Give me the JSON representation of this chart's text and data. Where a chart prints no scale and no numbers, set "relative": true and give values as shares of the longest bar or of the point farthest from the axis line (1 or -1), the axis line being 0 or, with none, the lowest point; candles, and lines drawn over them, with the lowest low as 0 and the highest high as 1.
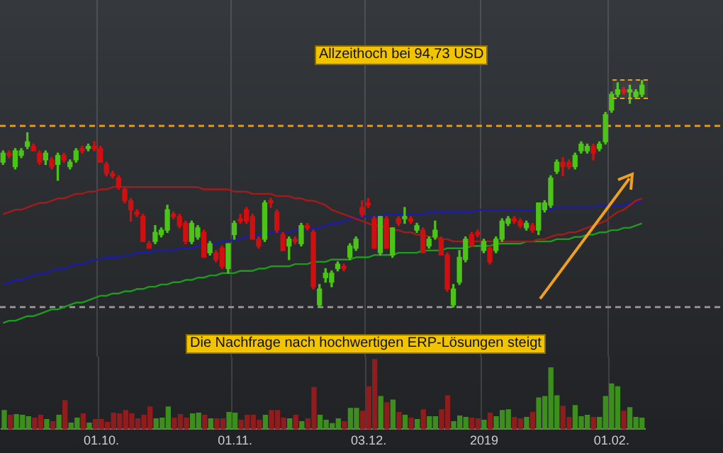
{
  "chart_data": [
    {
      "type": "candlestick",
      "relative": true,
      "grid": "x",
      "marker": "none",
      "tick_labels": false,
      "annotations": [
        "Allzeithoch bei 94,73 USD",
        "Die Nachfrage nach hochwertigen ERP-Lösungen steigt"
      ],
      "categories": [
        null,
        null,
        null,
        null,
        null,
        null,
        null,
        null,
        null,
        null,
        null,
        null,
        null,
        null,
        null,
        null,
        "01.10.",
        null,
        null,
        null,
        null,
        null,
        null,
        null,
        null,
        null,
        null,
        null,
        null,
        null,
        null,
        null,
        null,
        null,
        null,
        null,
        null,
        null,
        "01.11.",
        null,
        null,
        null,
        null,
        null,
        null,
        null,
        null,
        null,
        null,
        null,
        null,
        null,
        null,
        null,
        null,
        null,
        null,
        null,
        null,
        null,
        "03.12.",
        null,
        null,
        null,
        null,
        null,
        null,
        null,
        null,
        null,
        null,
        null,
        null,
        null,
        null,
        null,
        null,
        null,
        null,
        "2019",
        null,
        null,
        null,
        null,
        null,
        null,
        null,
        null,
        null,
        null,
        null,
        null,
        null,
        null,
        null,
        null,
        null,
        null,
        null,
        null,
        "01.02.",
        null,
        null,
        null,
        null,
        null
      ],
      "ohlc": [
        [
          0.64,
          0.69,
          0.63,
          0.68
        ],
        [
          0.68,
          0.69,
          0.66,
          0.67
        ],
        [
          0.62,
          0.7,
          0.61,
          0.69
        ],
        [
          0.67,
          0.7,
          0.66,
          0.69
        ],
        [
          0.71,
          0.77,
          0.7,
          0.73
        ],
        [
          0.71,
          0.72,
          0.69,
          0.69
        ],
        [
          0.68,
          0.69,
          0.63,
          0.64
        ],
        [
          0.65,
          0.69,
          0.63,
          0.68
        ],
        [
          0.65,
          0.66,
          0.61,
          0.62
        ],
        [
          0.63,
          0.68,
          0.56,
          0.67
        ],
        [
          0.67,
          0.68,
          0.64,
          0.65
        ],
        [
          0.62,
          0.65,
          0.61,
          0.64
        ],
        [
          0.65,
          0.7,
          0.64,
          0.69
        ],
        [
          0.7,
          0.71,
          0.68,
          0.69
        ],
        [
          0.7,
          0.72,
          0.69,
          0.71
        ],
        [
          0.71,
          0.73,
          0.69,
          0.7
        ],
        [
          0.7,
          0.71,
          0.64,
          0.64
        ],
        [
          0.63,
          0.64,
          0.58,
          0.59
        ],
        [
          0.59,
          0.6,
          0.57,
          0.58
        ],
        [
          0.57,
          0.58,
          0.52,
          0.53
        ],
        [
          0.52,
          0.53,
          0.46,
          0.47
        ],
        [
          0.47,
          0.48,
          0.38,
          0.43
        ],
        [
          0.42,
          0.43,
          0.4,
          0.41
        ],
        [
          0.4,
          0.41,
          0.29,
          0.29
        ],
        [
          0.28,
          0.29,
          0.26,
          0.26
        ],
        [
          0.29,
          0.36,
          0.28,
          0.33
        ],
        [
          0.32,
          0.35,
          0.31,
          0.34
        ],
        [
          0.34,
          0.45,
          0.33,
          0.43
        ],
        [
          0.41,
          0.42,
          0.39,
          0.4
        ],
        [
          0.4,
          0.41,
          0.35,
          0.36
        ],
        [
          0.37,
          0.38,
          0.28,
          0.29
        ],
        [
          0.29,
          0.38,
          0.28,
          0.37
        ],
        [
          0.31,
          0.36,
          0.3,
          0.35
        ],
        [
          0.33,
          0.34,
          0.22,
          0.22
        ],
        [
          0.24,
          0.29,
          0.23,
          0.28
        ],
        [
          0.24,
          0.25,
          0.2,
          0.21
        ],
        [
          0.26,
          0.27,
          0.17,
          0.18
        ],
        [
          0.17,
          0.28,
          0.15,
          0.28
        ],
        [
          0.32,
          0.38,
          0.3,
          0.37
        ],
        [
          0.39,
          0.41,
          0.37,
          0.38
        ],
        [
          0.43,
          0.44,
          0.37,
          0.38
        ],
        [
          0.4,
          0.41,
          0.3,
          0.3
        ],
        [
          0.3,
          0.31,
          0.26,
          0.27
        ],
        [
          0.3,
          0.47,
          0.29,
          0.46
        ],
        [
          0.47,
          0.48,
          0.44,
          0.46
        ],
        [
          0.42,
          0.43,
          0.33,
          0.34
        ],
        [
          0.32,
          0.33,
          0.25,
          0.25
        ],
        [
          0.27,
          0.31,
          0.21,
          0.3
        ],
        [
          0.3,
          0.31,
          0.28,
          0.29
        ],
        [
          0.28,
          0.37,
          0.27,
          0.36
        ],
        [
          0.36,
          0.37,
          0.34,
          0.35
        ],
        [
          0.33,
          0.34,
          0.08,
          0.09
        ],
        [
          0.01,
          0.1,
          0,
          0.08
        ],
        [
          0.13,
          0.17,
          0.11,
          0.15
        ],
        [
          0.11,
          0.16,
          0.09,
          0.15
        ],
        [
          0.17,
          0.2,
          0.16,
          0.19
        ],
        [
          0.18,
          0.19,
          0.16,
          0.17
        ],
        [
          0.22,
          0.28,
          0.21,
          0.27
        ],
        [
          0.26,
          0.31,
          0.25,
          0.3
        ],
        [
          0.44,
          0.47,
          0.4,
          0.41
        ],
        [
          0.46,
          0.48,
          0.44,
          0.45
        ],
        [
          0.39,
          0.4,
          0.26,
          0.26
        ],
        [
          0.24,
          0.4,
          0.23,
          0.4
        ],
        [
          0.39,
          0.4,
          0.26,
          0.26
        ],
        [
          0.23,
          0.35,
          0.22,
          0.35
        ],
        [
          0.39,
          0.4,
          0.36,
          0.37
        ],
        [
          0.39,
          0.44,
          0.37,
          0.4
        ],
        [
          0.39,
          0.4,
          0.37,
          0.38
        ],
        [
          0.34,
          0.37,
          0.33,
          0.36
        ],
        [
          0.34,
          0.35,
          0.24,
          0.24
        ],
        [
          0.27,
          0.31,
          0.26,
          0.3
        ],
        [
          0.31,
          0.38,
          0.3,
          0.34
        ],
        [
          0.3,
          0.31,
          0.23,
          0.23
        ],
        [
          0.23,
          0.24,
          0.07,
          0.08
        ],
        [
          0.01,
          0.1,
          0,
          0.08
        ],
        [
          0.11,
          0.25,
          0.1,
          0.22
        ],
        [
          0.21,
          0.31,
          0.2,
          0.3
        ],
        [
          0.32,
          0.33,
          0.27,
          0.27
        ],
        [
          0.33,
          0.34,
          0.31,
          0.32
        ],
        [
          0.25,
          0.3,
          0.24,
          0.29
        ],
        [
          0.26,
          0.27,
          0.19,
          0.2
        ],
        [
          0.25,
          0.31,
          0.24,
          0.3
        ],
        [
          0.3,
          0.39,
          0.29,
          0.38
        ],
        [
          0.37,
          0.4,
          0.36,
          0.39
        ],
        [
          0.39,
          0.4,
          0.37,
          0.38
        ],
        [
          0.38,
          0.39,
          0.35,
          0.36
        ],
        [
          0.35,
          0.38,
          0.34,
          0.37
        ],
        [
          0.36,
          0.37,
          0.33,
          0.34
        ],
        [
          0.34,
          0.46,
          0.32,
          0.46
        ],
        [
          0.43,
          0.47,
          0.42,
          0.46
        ],
        [
          0.45,
          0.58,
          0.44,
          0.57
        ],
        [
          0.6,
          0.65,
          0.59,
          0.64
        ],
        [
          0.64,
          0.66,
          0.58,
          0.62
        ],
        [
          0.64,
          0.65,
          0.61,
          0.62
        ],
        [
          0.62,
          0.68,
          0.61,
          0.67
        ],
        [
          0.69,
          0.73,
          0.68,
          0.72
        ],
        [
          0.69,
          0.72,
          0.68,
          0.71
        ],
        [
          0.71,
          0.72,
          0.65,
          0.68
        ],
        [
          0.7,
          0.73,
          0.69,
          0.72
        ],
        [
          0.73,
          0.86,
          0.72,
          0.85
        ],
        [
          0.87,
          0.95,
          0.86,
          0.94
        ],
        [
          0.94,
          0.99,
          0.93,
          0.96
        ],
        [
          0.96,
          0.97,
          0.94,
          0.95
        ],
        [
          0.95,
          0.98,
          0.9,
          0.96
        ],
        [
          0.93,
          0.96,
          0.92,
          0.95
        ],
        [
          0.94,
          1,
          0.93,
          0.98
        ]
      ],
      "colors": [
        "#4cc417",
        "#d01010",
        "#4cc417",
        "#4cc417",
        "#4cc417",
        "#d01010",
        "#d01010",
        "#4cc417",
        "#d01010",
        "#4cc417",
        "#d01010",
        "#4cc417",
        "#4cc417",
        "#d01010",
        "#4cc417",
        "#d01010",
        "#d01010",
        "#d01010",
        "#d01010",
        "#d01010",
        "#d01010",
        "#d01010",
        "#d01010",
        "#d01010",
        "#d01010",
        "#4cc417",
        "#4cc417",
        "#4cc417",
        "#d01010",
        "#d01010",
        "#d01010",
        "#4cc417",
        "#4cc417",
        "#d01010",
        "#4cc417",
        "#d01010",
        "#d01010",
        "#4cc417",
        "#4cc417",
        "#d01010",
        "#d01010",
        "#d01010",
        "#d01010",
        "#4cc417",
        "#d01010",
        "#d01010",
        "#d01010",
        "#4cc417",
        "#d01010",
        "#4cc417",
        "#d01010",
        "#d01010",
        "#4cc417",
        "#4cc417",
        "#4cc417",
        "#4cc417",
        "#d01010",
        "#4cc417",
        "#4cc417",
        "#d01010",
        "#d01010",
        "#d01010",
        "#4cc417",
        "#d01010",
        "#4cc417",
        "#d01010",
        "#4cc417",
        "#d01010",
        "#4cc417",
        "#d01010",
        "#4cc417",
        "#4cc417",
        "#d01010",
        "#d01010",
        "#4cc417",
        "#4cc417",
        "#4cc417",
        "#d01010",
        "#d01010",
        "#4cc417",
        "#d01010",
        "#4cc417",
        "#4cc417",
        "#4cc417",
        "#d01010",
        "#d01010",
        "#4cc417",
        "#d01010",
        "#4cc417",
        "#4cc417",
        "#4cc417",
        "#4cc417",
        "#d01010",
        "#d01010",
        "#4cc417",
        "#4cc417",
        "#4cc417",
        "#d01010",
        "#4cc417",
        "#4cc417",
        "#4cc417",
        "#4cc417",
        "#d01010",
        "#4cc417",
        "#4cc417",
        "#4cc417"
      ],
      "series": [
        {
          "type": "line",
          "color": "#a31c1c",
          "values": [
            0.41,
            0.42,
            0.43,
            0.43,
            0.44,
            0.45,
            0.46,
            0.46,
            0.47,
            0.48,
            0.48,
            0.49,
            0.5,
            0.5,
            0.51,
            0.51,
            0.52,
            0.52,
            0.53,
            0.53,
            0.53,
            0.53,
            0.53,
            0.53,
            0.53,
            0.53,
            0.53,
            0.53,
            0.53,
            0.53,
            0.53,
            0.53,
            0.53,
            0.52,
            0.52,
            0.52,
            0.52,
            0.52,
            0.51,
            0.51,
            0.51,
            0.5,
            0.5,
            0.5,
            0.5,
            0.49,
            0.49,
            0.49,
            0.48,
            0.48,
            0.47,
            0.47,
            0.46,
            0.45,
            0.43,
            0.42,
            0.41,
            0.4,
            0.39,
            0.38,
            0.37,
            0.36,
            0.36,
            0.35,
            0.34,
            0.34,
            0.33,
            0.33,
            0.32,
            0.32,
            0.31,
            0.31,
            0.3,
            0.3,
            0.29,
            0.29,
            0.29,
            0.29,
            0.29,
            0.29,
            0.29,
            0.29,
            0.29,
            0.29,
            0.29,
            0.29,
            0.29,
            0.29,
            0.3,
            0.3,
            0.31,
            0.32,
            0.32,
            0.33,
            0.33,
            0.34,
            0.35,
            0.36,
            0.37,
            0.38,
            0.4,
            0.42,
            0.43,
            0.45,
            0.47,
            0.48
          ]
        },
        {
          "type": "line",
          "color": "#1c1ca8",
          "values": [
            0.1,
            0.11,
            0.12,
            0.12,
            0.13,
            0.14,
            0.15,
            0.15,
            0.16,
            0.17,
            0.17,
            0.18,
            0.19,
            0.19,
            0.2,
            0.21,
            0.21,
            0.22,
            0.22,
            0.22,
            0.23,
            0.23,
            0.24,
            0.24,
            0.24,
            0.25,
            0.25,
            0.25,
            0.25,
            0.26,
            0.26,
            0.26,
            0.27,
            0.27,
            0.28,
            0.28,
            0.29,
            0.29,
            0.3,
            0.3,
            0.31,
            0.31,
            0.32,
            0.32,
            0.33,
            0.33,
            0.33,
            0.33,
            0.34,
            0.34,
            0.34,
            0.35,
            0.35,
            0.36,
            0.37,
            0.37,
            0.38,
            0.39,
            0.39,
            0.4,
            0.4,
            0.4,
            0.4,
            0.41,
            0.41,
            0.41,
            0.41,
            0.41,
            0.41,
            0.41,
            0.42,
            0.42,
            0.42,
            0.42,
            0.42,
            0.42,
            0.42,
            0.42,
            0.43,
            0.43,
            0.43,
            0.43,
            0.43,
            0.43,
            0.43,
            0.43,
            0.43,
            0.43,
            0.43,
            0.43,
            0.43,
            0.44,
            0.44,
            0.44,
            0.44,
            0.44,
            0.44,
            0.44,
            0.45,
            0.45,
            0.45,
            0.45,
            0.45,
            0.46,
            0.46,
            0.46
          ]
        },
        {
          "type": "line",
          "color": "#1f9a1f",
          "values": [
            -0.07,
            -0.06,
            -0.06,
            -0.05,
            -0.04,
            -0.04,
            -0.03,
            -0.02,
            -0.01,
            -0.01,
            0.0,
            0.01,
            0.02,
            0.02,
            0.03,
            0.04,
            0.05,
            0.05,
            0.06,
            0.06,
            0.07,
            0.07,
            0.08,
            0.08,
            0.09,
            0.09,
            0.1,
            0.1,
            0.11,
            0.11,
            0.12,
            0.12,
            0.13,
            0.13,
            0.14,
            0.14,
            0.15,
            0.15,
            0.15,
            0.16,
            0.16,
            0.16,
            0.17,
            0.17,
            0.18,
            0.18,
            0.18,
            0.18,
            0.19,
            0.19,
            0.19,
            0.2,
            0.2,
            0.2,
            0.21,
            0.21,
            0.21,
            0.21,
            0.22,
            0.22,
            0.22,
            0.23,
            0.23,
            0.23,
            0.23,
            0.24,
            0.24,
            0.24,
            0.24,
            0.25,
            0.25,
            0.25,
            0.25,
            0.26,
            0.26,
            0.26,
            0.26,
            0.27,
            0.27,
            0.27,
            0.27,
            0.28,
            0.28,
            0.28,
            0.28,
            0.28,
            0.29,
            0.29,
            0.29,
            0.29,
            0.29,
            0.3,
            0.3,
            0.3,
            0.31,
            0.31,
            0.32,
            0.32,
            0.33,
            0.33,
            0.34,
            0.34,
            0.35,
            0.35,
            0.36,
            0.37
          ]
        }
      ],
      "ref_lines": [
        {
          "axis": "y",
          "value": 0.8,
          "color": "#e8a020",
          "line_style": "dashed"
        },
        {
          "axis": "y",
          "value": 0,
          "color": "#9a9a9a",
          "line_style": "dashed"
        }
      ]
    },
    {
      "type": "bar",
      "relative": true,
      "grid": "x",
      "tick_labels": "x",
      "categories": [
        null,
        null,
        null,
        null,
        null,
        null,
        null,
        null,
        null,
        null,
        null,
        null,
        null,
        null,
        null,
        null,
        "01.10.",
        null,
        null,
        null,
        null,
        null,
        null,
        null,
        null,
        null,
        null,
        null,
        null,
        null,
        null,
        null,
        null,
        null,
        null,
        null,
        null,
        null,
        "01.11.",
        null,
        null,
        null,
        null,
        null,
        null,
        null,
        null,
        null,
        null,
        null,
        null,
        null,
        null,
        null,
        null,
        null,
        null,
        null,
        null,
        null,
        "03.12.",
        null,
        null,
        null,
        null,
        null,
        null,
        null,
        null,
        null,
        null,
        null,
        null,
        null,
        null,
        null,
        null,
        null,
        null,
        "2019",
        null,
        null,
        null,
        null,
        null,
        null,
        null,
        null,
        null,
        null,
        null,
        null,
        null,
        null,
        null,
        null,
        null,
        null,
        null,
        null,
        "01.02.",
        null,
        null,
        null,
        null,
        null
      ],
      "values": [
        0.27,
        0.2,
        0.21,
        0.2,
        0.18,
        0.16,
        0.2,
        0.14,
        0.11,
        0.2,
        0.41,
        0.09,
        0.16,
        0.22,
        0.09,
        0.14,
        0.14,
        0.1,
        0.23,
        0.22,
        0.27,
        0.22,
        0.15,
        0.2,
        0.32,
        0.15,
        0.16,
        0.32,
        0.16,
        0.21,
        0.16,
        0.22,
        0.23,
        0.2,
        0.15,
        0.15,
        0.15,
        0.24,
        0.23,
        0.13,
        0.2,
        0.2,
        0.13,
        0.2,
        0.27,
        0.27,
        0.16,
        0.15,
        0.2,
        0.11,
        0.15,
        0.6,
        0.2,
        0.13,
        0.08,
        0.15,
        0.11,
        0.3,
        0.3,
        0.26,
        0.61,
        1,
        0.47,
        0.38,
        0.42,
        0.24,
        0.2,
        0.16,
        0.14,
        0.28,
        0.18,
        0.18,
        0.28,
        0.48,
        0.11,
        0.19,
        0.17,
        0.16,
        0.15,
        0.13,
        0.23,
        0.18,
        0.27,
        0.28,
        0.17,
        0.15,
        0.17,
        0.24,
        0.45,
        0.47,
        0.88,
        0.48,
        0.33,
        0.17,
        0.34,
        0.18,
        0.2,
        0.17,
        0.17,
        0.47,
        0.65,
        0.61,
        0.26,
        0.31,
        0.17,
        0.16
      ],
      "colors": [
        "#3d8f1d",
        "#8f1d1d",
        "#3d8f1d",
        "#3d8f1d",
        "#3d8f1d",
        "#8f1d1d",
        "#8f1d1d",
        "#3d8f1d",
        "#8f1d1d",
        "#3d8f1d",
        "#8f1d1d",
        "#3d8f1d",
        "#3d8f1d",
        "#8f1d1d",
        "#3d8f1d",
        "#8f1d1d",
        "#8f1d1d",
        "#8f1d1d",
        "#8f1d1d",
        "#8f1d1d",
        "#8f1d1d",
        "#8f1d1d",
        "#8f1d1d",
        "#8f1d1d",
        "#8f1d1d",
        "#3d8f1d",
        "#3d8f1d",
        "#3d8f1d",
        "#8f1d1d",
        "#8f1d1d",
        "#8f1d1d",
        "#3d8f1d",
        "#3d8f1d",
        "#8f1d1d",
        "#3d8f1d",
        "#8f1d1d",
        "#8f1d1d",
        "#3d8f1d",
        "#3d8f1d",
        "#8f1d1d",
        "#8f1d1d",
        "#8f1d1d",
        "#8f1d1d",
        "#3d8f1d",
        "#8f1d1d",
        "#8f1d1d",
        "#8f1d1d",
        "#3d8f1d",
        "#8f1d1d",
        "#3d8f1d",
        "#8f1d1d",
        "#8f1d1d",
        "#3d8f1d",
        "#3d8f1d",
        "#3d8f1d",
        "#3d8f1d",
        "#8f1d1d",
        "#3d8f1d",
        "#3d8f1d",
        "#8f1d1d",
        "#8f1d1d",
        "#8f1d1d",
        "#3d8f1d",
        "#8f1d1d",
        "#3d8f1d",
        "#8f1d1d",
        "#3d8f1d",
        "#8f1d1d",
        "#3d8f1d",
        "#8f1d1d",
        "#3d8f1d",
        "#3d8f1d",
        "#8f1d1d",
        "#8f1d1d",
        "#3d8f1d",
        "#3d8f1d",
        "#3d8f1d",
        "#8f1d1d",
        "#8f1d1d",
        "#3d8f1d",
        "#8f1d1d",
        "#3d8f1d",
        "#3d8f1d",
        "#3d8f1d",
        "#8f1d1d",
        "#8f1d1d",
        "#3d8f1d",
        "#8f1d1d",
        "#3d8f1d",
        "#3d8f1d",
        "#3d8f1d",
        "#3d8f1d",
        "#8f1d1d",
        "#8f1d1d",
        "#3d8f1d",
        "#3d8f1d",
        "#3d8f1d",
        "#8f1d1d",
        "#3d8f1d",
        "#3d8f1d",
        "#3d8f1d",
        "#3d8f1d",
        "#8f1d1d",
        "#3d8f1d",
        "#3d8f1d",
        "#3d8f1d"
      ]
    }
  ]
}
